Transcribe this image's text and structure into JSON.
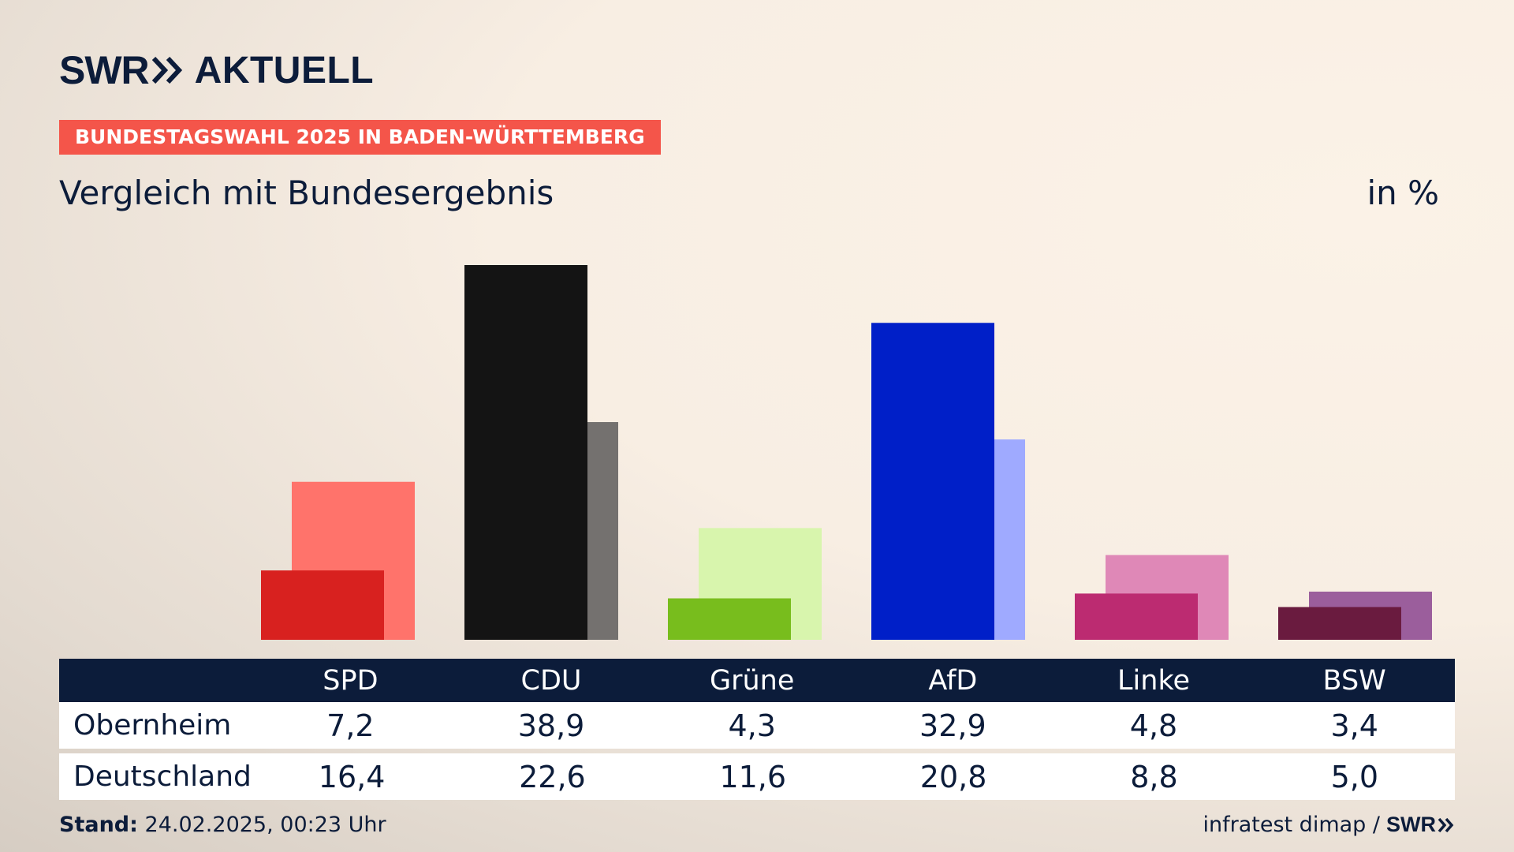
{
  "header": {
    "logo_swr": "SWR",
    "logo_brand": "AKTUELL",
    "tagline": "BUNDESTAGSWAHL 2025 IN BADEN-WÜRTTEMBERG",
    "subtitle": "Vergleich mit Bundesergebnis",
    "unit": "in %"
  },
  "table": {
    "row1_label": "Obernheim",
    "row2_label": "Deutschland",
    "headers": [
      "SPD",
      "CDU",
      "Grüne",
      "AfD",
      "Linke",
      "BSW"
    ],
    "row1_values": [
      "7,2",
      "38,9",
      "4,3",
      "32,9",
      "4,8",
      "3,4"
    ],
    "row2_values": [
      "16,4",
      "22,6",
      "11,6",
      "20,8",
      "8,8",
      "5,0"
    ]
  },
  "footer": {
    "stand_label": "Stand:",
    "stand_value": "24.02.2025, 00:23 Uhr",
    "source": "infratest dimap /",
    "source_logo": "SWR"
  },
  "chart_data": {
    "type": "bar",
    "categories": [
      "SPD",
      "CDU",
      "Grüne",
      "AfD",
      "Linke",
      "BSW"
    ],
    "series": [
      {
        "name": "Obernheim",
        "values": [
          7.2,
          38.9,
          4.3,
          32.9,
          4.8,
          3.4
        ]
      },
      {
        "name": "Deutschland",
        "values": [
          16.4,
          22.6,
          11.6,
          20.8,
          8.8,
          5.0
        ]
      }
    ],
    "ylim": [
      0,
      40
    ],
    "colors_primary": [
      "#d8211f",
      "#141414",
      "#78bd1d",
      "#001fc8",
      "#bc2b71",
      "#6a1b3f"
    ],
    "colors_secondary": [
      "#ff736b",
      "#74716f",
      "#d8f5ad",
      "#9faaff",
      "#df88b7",
      "#9b5e9c"
    ]
  }
}
